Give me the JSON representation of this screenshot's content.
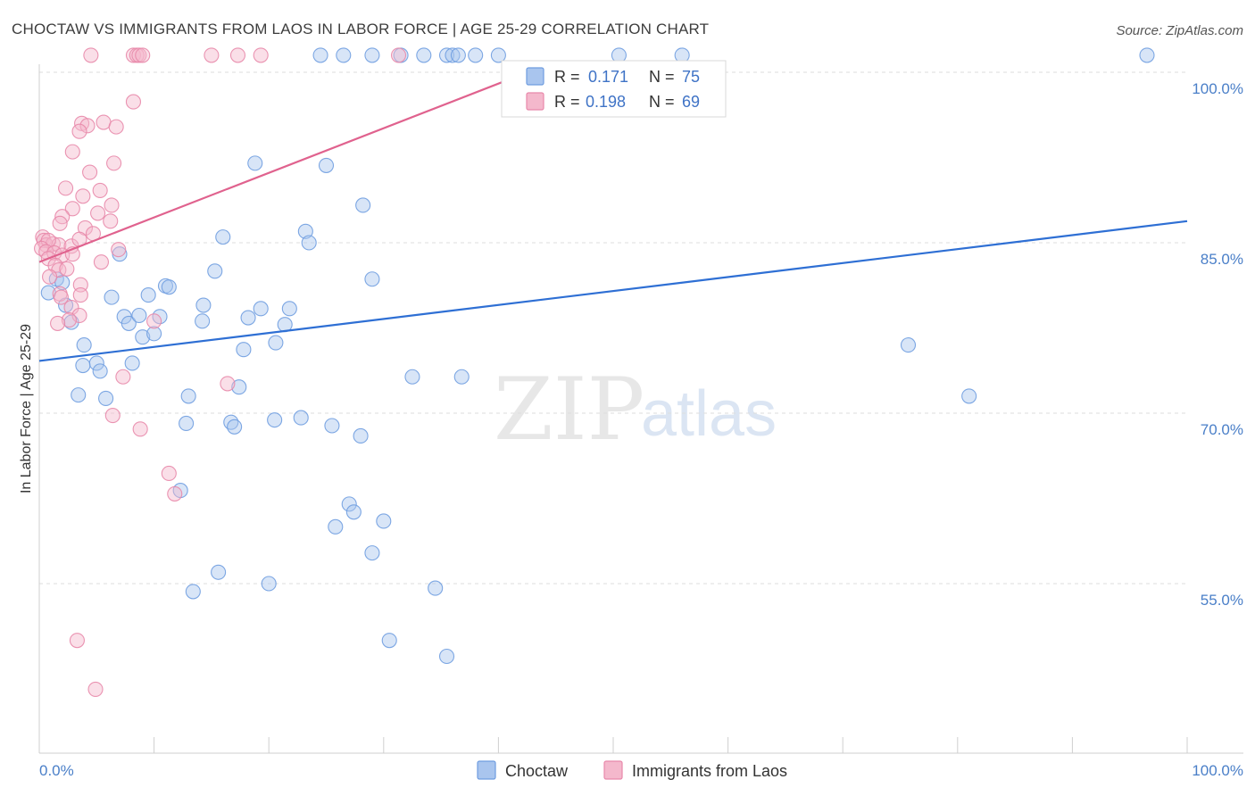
{
  "chart_data": {
    "type": "scatter",
    "title": "CHOCTAW VS IMMIGRANTS FROM LAOS IN LABOR FORCE | AGE 25-29 CORRELATION CHART",
    "source": "Source: ZipAtlas.com",
    "xlabel": "",
    "ylabel": "In Labor Force | Age 25-29",
    "xlim": [
      0,
      100
    ],
    "ylim": [
      40,
      101.5
    ],
    "x_tick_labels": {
      "left": "0.0%",
      "right": "100.0%"
    },
    "y_ticks": [
      {
        "value": 100,
        "label": "100.0%"
      },
      {
        "value": 85,
        "label": "85.0%"
      },
      {
        "value": 70,
        "label": "70.0%"
      },
      {
        "value": 55,
        "label": "55.0%"
      }
    ],
    "watermark": {
      "zip": "ZIP",
      "atlas": "atlas"
    },
    "legend": {
      "r_label": "R =",
      "n_label": "N =",
      "entries": [
        {
          "name": "Choctaw",
          "r": "0.171",
          "n": "75"
        },
        {
          "name": "Immigrants from Laos",
          "r": "0.198",
          "n": "69"
        }
      ]
    },
    "series": [
      {
        "name": "Choctaw",
        "color": "#6f9de0",
        "fill": "#a9c5ee",
        "trend": {
          "x": [
            0,
            100
          ],
          "y": [
            74.6,
            86.9
          ]
        },
        "points": [
          [
            24.5,
            101.5
          ],
          [
            26.5,
            101.5
          ],
          [
            29,
            101.5
          ],
          [
            31.5,
            101.5
          ],
          [
            33.5,
            101.5
          ],
          [
            35.5,
            101.5
          ],
          [
            36,
            101.5
          ],
          [
            36.5,
            101.5
          ],
          [
            38,
            101.5
          ],
          [
            40,
            101.5
          ],
          [
            50.5,
            101.5
          ],
          [
            56,
            101.5
          ],
          [
            96.5,
            101.5
          ],
          [
            18.8,
            92
          ],
          [
            25,
            91.8
          ],
          [
            28.2,
            88.3
          ],
          [
            23.2,
            86
          ],
          [
            16,
            85.5
          ],
          [
            23.5,
            85
          ],
          [
            7,
            84
          ],
          [
            15.3,
            82.5
          ],
          [
            29,
            81.8
          ],
          [
            0.8,
            80.6
          ],
          [
            1.5,
            81.8
          ],
          [
            2,
            81.5
          ],
          [
            6.3,
            80.2
          ],
          [
            9.5,
            80.4
          ],
          [
            11,
            81.2
          ],
          [
            11.3,
            81.1
          ],
          [
            14.3,
            79.5
          ],
          [
            19.3,
            79.2
          ],
          [
            21.8,
            79.2
          ],
          [
            2.3,
            79.5
          ],
          [
            2.8,
            78
          ],
          [
            7.4,
            78.5
          ],
          [
            7.8,
            77.9
          ],
          [
            8.7,
            78.6
          ],
          [
            10.5,
            78.5
          ],
          [
            14.2,
            78.1
          ],
          [
            18.2,
            78.4
          ],
          [
            21.4,
            77.8
          ],
          [
            9,
            76.7
          ],
          [
            10,
            77
          ],
          [
            3.9,
            76
          ],
          [
            5,
            74.4
          ],
          [
            3.8,
            74.2
          ],
          [
            5.3,
            73.7
          ],
          [
            8.1,
            74.4
          ],
          [
            17.8,
            75.6
          ],
          [
            20.6,
            76.2
          ],
          [
            32.5,
            73.2
          ],
          [
            36.8,
            73.2
          ],
          [
            75.7,
            76
          ],
          [
            3.4,
            71.6
          ],
          [
            5.8,
            71.3
          ],
          [
            13,
            71.5
          ],
          [
            17.4,
            72.3
          ],
          [
            12.8,
            69.1
          ],
          [
            16.7,
            69.2
          ],
          [
            17,
            68.8
          ],
          [
            20.5,
            69.4
          ],
          [
            22.8,
            69.6
          ],
          [
            25.5,
            68.9
          ],
          [
            28,
            68
          ],
          [
            81,
            71.5
          ],
          [
            12.3,
            63.2
          ],
          [
            27,
            62
          ],
          [
            25.8,
            60
          ],
          [
            27.4,
            61.3
          ],
          [
            30,
            60.5
          ],
          [
            29,
            57.7
          ],
          [
            15.6,
            56
          ],
          [
            13.4,
            54.3
          ],
          [
            20,
            55
          ],
          [
            34.5,
            54.6
          ],
          [
            30.5,
            50
          ],
          [
            35.5,
            48.6
          ]
        ]
      },
      {
        "name": "Immigrants from Laos",
        "color": "#e888aa",
        "fill": "#f4b8cc",
        "trend": {
          "x": [
            0,
            40.5
          ],
          "y": [
            83.3,
            99.2
          ]
        },
        "points": [
          [
            4.5,
            101.5
          ],
          [
            8.2,
            101.5
          ],
          [
            8.5,
            101.5
          ],
          [
            8.7,
            101.5
          ],
          [
            9,
            101.5
          ],
          [
            15,
            101.5
          ],
          [
            17.3,
            101.5
          ],
          [
            19.3,
            101.5
          ],
          [
            31.3,
            101.5
          ],
          [
            8.2,
            97.4
          ],
          [
            3.7,
            95.5
          ],
          [
            4.2,
            95.3
          ],
          [
            5.6,
            95.6
          ],
          [
            6.7,
            95.2
          ],
          [
            3.5,
            94.8
          ],
          [
            2.9,
            93
          ],
          [
            6.5,
            92
          ],
          [
            4.4,
            91.2
          ],
          [
            2.3,
            89.8
          ],
          [
            5.3,
            89.6
          ],
          [
            3.8,
            89.1
          ],
          [
            6.3,
            88.3
          ],
          [
            2.9,
            88
          ],
          [
            5.1,
            87.6
          ],
          [
            2,
            87.3
          ],
          [
            6.2,
            86.9
          ],
          [
            1.8,
            86.7
          ],
          [
            4,
            86.3
          ],
          [
            4.7,
            85.8
          ],
          [
            0.3,
            85.5
          ],
          [
            0.4,
            85.2
          ],
          [
            0.6,
            84.8
          ],
          [
            1.2,
            84.9
          ],
          [
            1.7,
            84.8
          ],
          [
            0.8,
            85.2
          ],
          [
            0.2,
            84.5
          ],
          [
            2.8,
            84.7
          ],
          [
            0.6,
            84.2
          ],
          [
            1.3,
            84.1
          ],
          [
            2,
            83.9
          ],
          [
            2.9,
            84
          ],
          [
            3.5,
            85.3
          ],
          [
            6.9,
            84.4
          ],
          [
            0.8,
            83.6
          ],
          [
            5.4,
            83.3
          ],
          [
            1.4,
            83
          ],
          [
            1.7,
            82.6
          ],
          [
            2.4,
            82.7
          ],
          [
            0.9,
            82
          ],
          [
            3.6,
            81.3
          ],
          [
            1.8,
            80.5
          ],
          [
            1.9,
            80.2
          ],
          [
            3.6,
            80.4
          ],
          [
            2.8,
            79.3
          ],
          [
            3.5,
            78.6
          ],
          [
            2.6,
            78.2
          ],
          [
            10,
            78.1
          ],
          [
            1.6,
            77.9
          ],
          [
            7.3,
            73.2
          ],
          [
            16.4,
            72.6
          ],
          [
            6.4,
            69.8
          ],
          [
            8.8,
            68.6
          ],
          [
            11.3,
            64.7
          ],
          [
            11.8,
            62.9
          ],
          [
            3.3,
            50
          ],
          [
            4.9,
            45.7
          ]
        ]
      }
    ]
  }
}
